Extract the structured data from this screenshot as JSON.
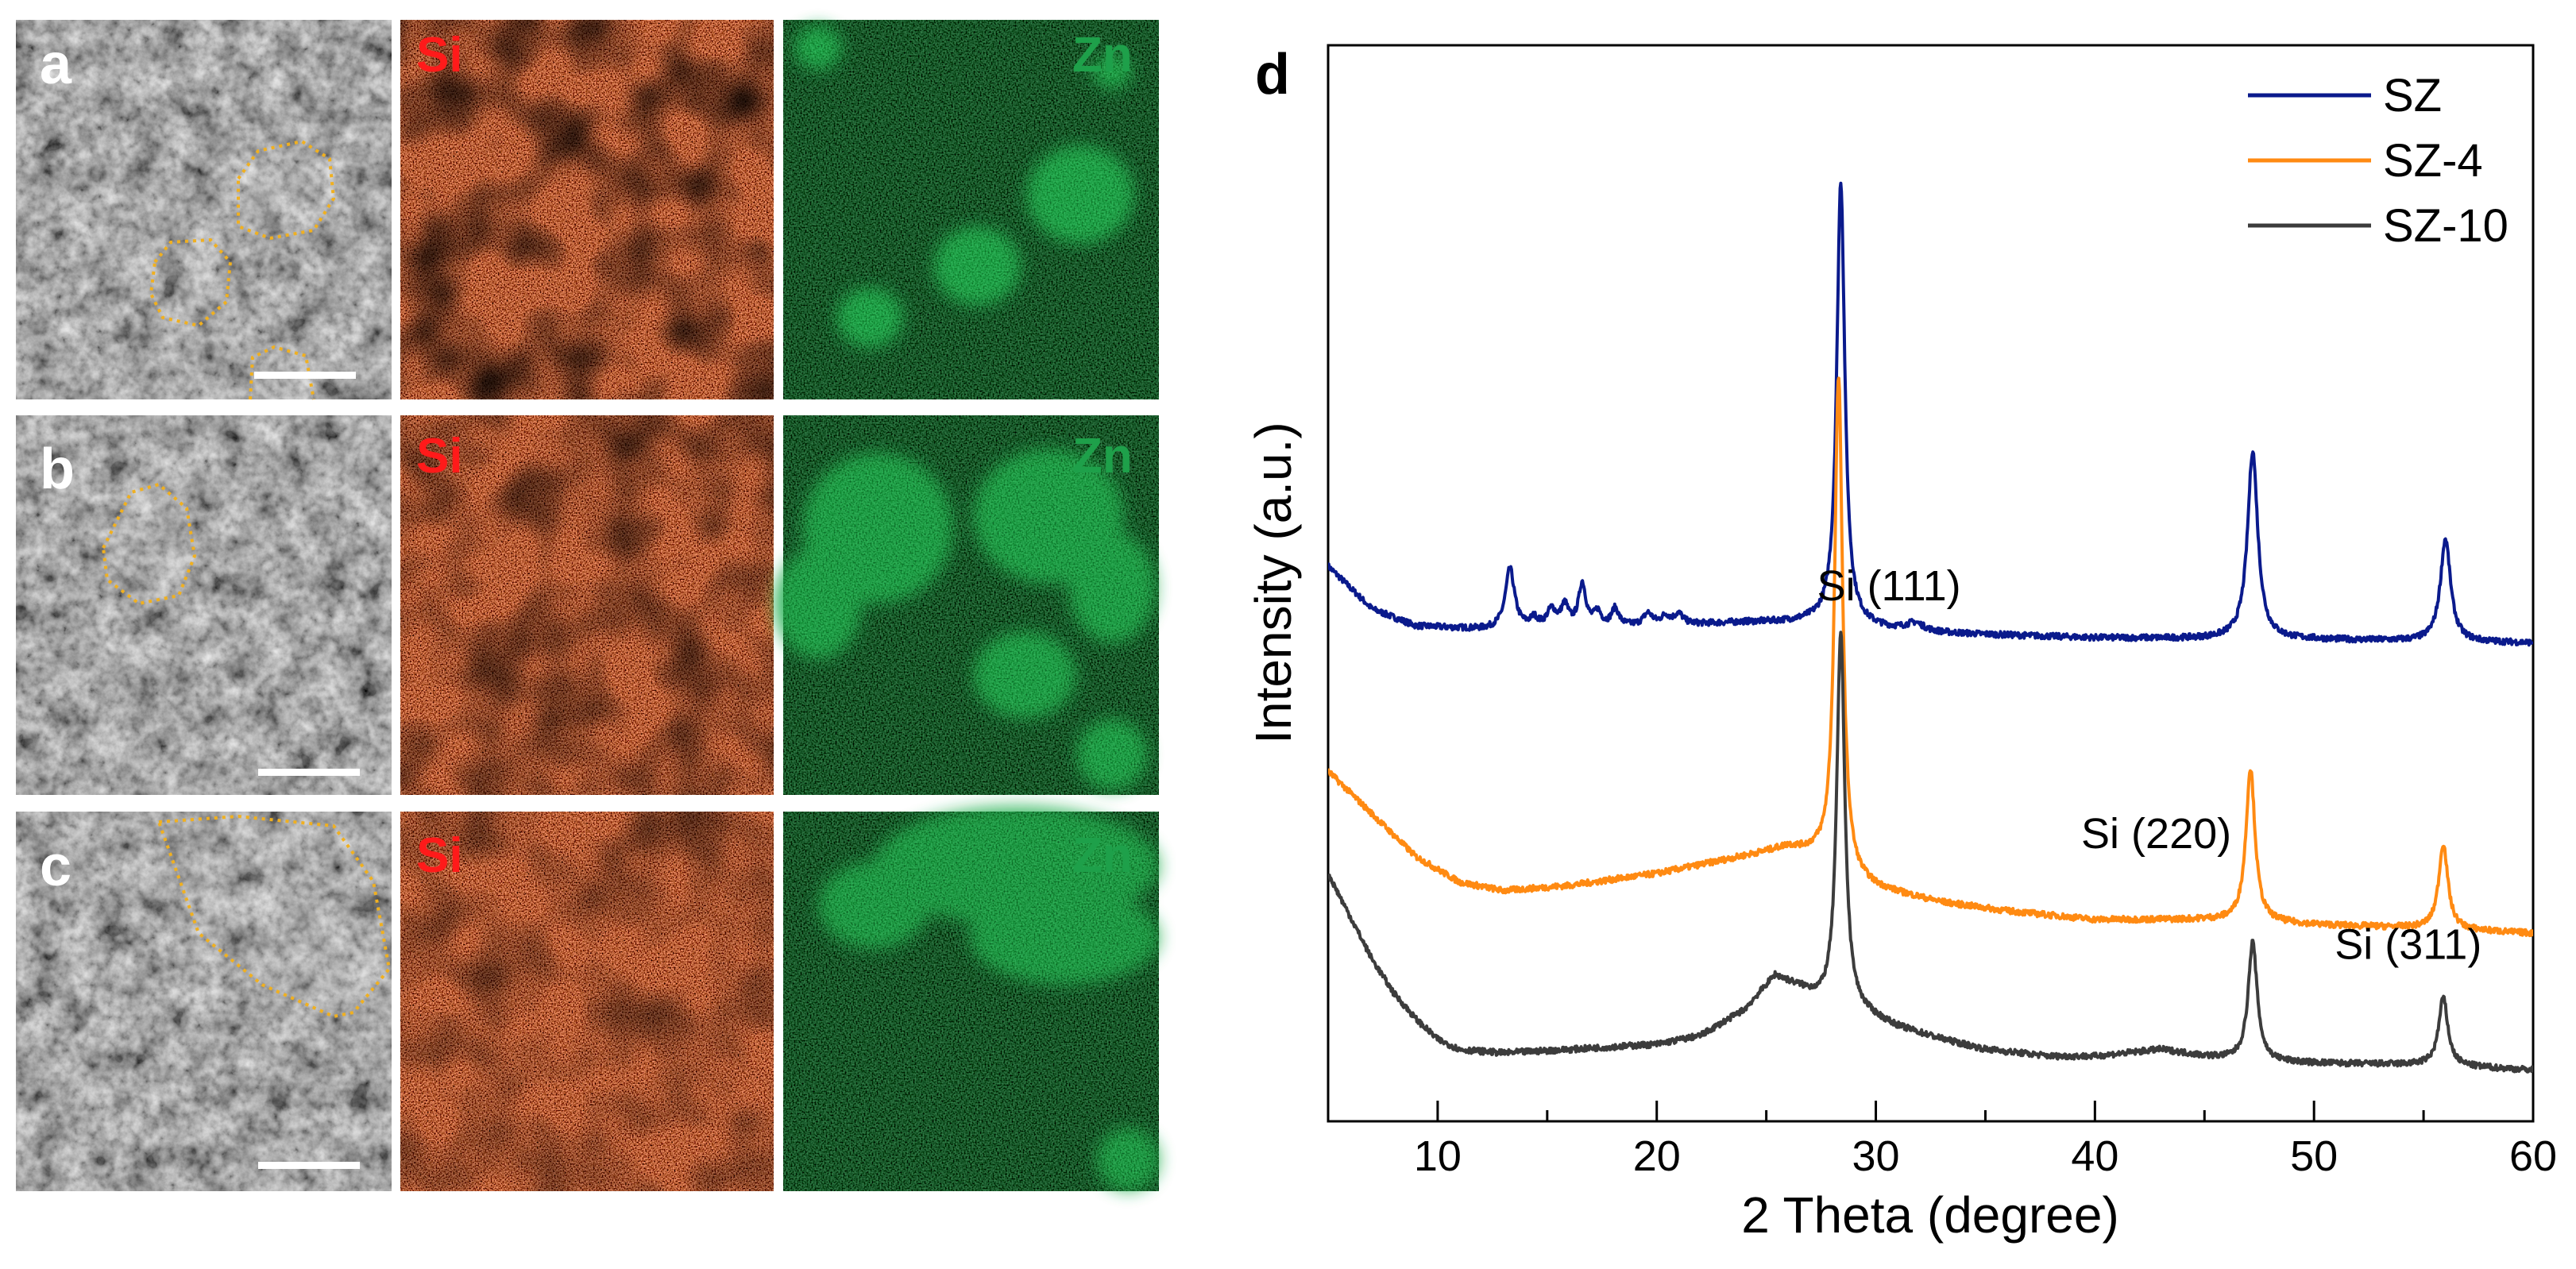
{
  "panels": {
    "a": {
      "letter": "a",
      "si_label": "Si",
      "zn_label": "Zn"
    },
    "b": {
      "letter": "b",
      "si_label": "Si",
      "zn_label": "Zn"
    },
    "c": {
      "letter": "c",
      "si_label": "Si",
      "zn_label": "Zn"
    },
    "d": {
      "letter": "d"
    }
  },
  "colors": {
    "si_map": "#e6321e",
    "zn_map": "#1fae4b",
    "si_label": "#ff1a1a",
    "zn_label": "#1ea04a",
    "outline": "#f0b020",
    "SZ": "#0a1a8c",
    "SZ-4": "#ff8a12",
    "SZ-10": "#3c3c3c"
  },
  "chart_data": {
    "type": "line",
    "title": "",
    "xlabel": "2 Theta (degree)",
    "ylabel": "Intensity (a.u.)",
    "xlim": [
      5,
      60
    ],
    "x_ticks": [
      10,
      20,
      30,
      40,
      50,
      60
    ],
    "x_tick_labels": [
      "10",
      "20",
      "30",
      "40",
      "50",
      "60"
    ],
    "legend": {
      "position": "top-right",
      "entries": [
        {
          "name": "SZ",
          "color": "#0a1a8c"
        },
        {
          "name": "SZ-4",
          "color": "#ff8a12"
        },
        {
          "name": "SZ-10",
          "color": "#3c3c3c"
        }
      ]
    },
    "series": [
      {
        "name": "SZ",
        "offset": 2.5,
        "baseline": [
          [
            5,
            0.45
          ],
          [
            7,
            0.2
          ],
          [
            9,
            0.1
          ],
          [
            12,
            0.08
          ],
          [
            20,
            0.1
          ],
          [
            24,
            0.12
          ],
          [
            27,
            0.12
          ],
          [
            32,
            0.06
          ],
          [
            40,
            0.03
          ],
          [
            50,
            0.02
          ],
          [
            60,
            0.0
          ]
        ],
        "peaks": [
          {
            "center": 13.3,
            "height": 0.35,
            "width": 0.25
          },
          {
            "center": 14.4,
            "height": 0.05,
            "width": 0.2
          },
          {
            "center": 15.2,
            "height": 0.1,
            "width": 0.25
          },
          {
            "center": 15.8,
            "height": 0.12,
            "width": 0.2
          },
          {
            "center": 16.6,
            "height": 0.25,
            "width": 0.2
          },
          {
            "center": 17.3,
            "height": 0.08,
            "width": 0.2
          },
          {
            "center": 18.1,
            "height": 0.1,
            "width": 0.2
          },
          {
            "center": 19.6,
            "height": 0.07,
            "width": 0.25
          },
          {
            "center": 20.4,
            "height": 0.05,
            "width": 0.25
          },
          {
            "center": 21.0,
            "height": 0.06,
            "width": 0.25
          },
          {
            "center": 28.4,
            "height": 2.6,
            "width": 0.22
          },
          {
            "center": 31.8,
            "height": 0.05,
            "width": 0.5
          },
          {
            "center": 47.2,
            "height": 1.1,
            "width": 0.28
          },
          {
            "center": 56.0,
            "height": 0.6,
            "width": 0.28
          }
        ]
      },
      {
        "name": "SZ-4",
        "offset": 0.8,
        "baseline": [
          [
            5,
            0.95
          ],
          [
            7,
            0.7
          ],
          [
            9,
            0.45
          ],
          [
            11,
            0.3
          ],
          [
            13,
            0.25
          ],
          [
            16,
            0.28
          ],
          [
            20,
            0.35
          ],
          [
            24,
            0.45
          ],
          [
            26,
            0.5
          ],
          [
            27.3,
            0.45
          ],
          [
            29,
            0.3
          ],
          [
            30,
            0.26
          ],
          [
            33,
            0.18
          ],
          [
            36,
            0.13
          ],
          [
            40,
            0.08
          ],
          [
            45,
            0.08
          ],
          [
            50,
            0.05
          ],
          [
            55,
            0.03
          ],
          [
            60,
            0.0
          ]
        ],
        "peaks": [
          {
            "center": 28.3,
            "height": 2.9,
            "width": 0.22
          },
          {
            "center": 47.1,
            "height": 0.9,
            "width": 0.25
          },
          {
            "center": 55.9,
            "height": 0.5,
            "width": 0.25
          }
        ]
      },
      {
        "name": "SZ-10",
        "offset": 0.0,
        "baseline": [
          [
            5,
            1.15
          ],
          [
            6,
            0.9
          ],
          [
            7,
            0.65
          ],
          [
            8,
            0.45
          ],
          [
            9,
            0.3
          ],
          [
            10,
            0.18
          ],
          [
            11,
            0.12
          ],
          [
            13,
            0.1
          ],
          [
            16,
            0.12
          ],
          [
            20,
            0.15
          ],
          [
            22,
            0.2
          ],
          [
            24,
            0.35
          ],
          [
            25.4,
            0.55
          ],
          [
            26.5,
            0.48
          ],
          [
            27.5,
            0.4
          ],
          [
            29,
            0.35
          ],
          [
            30,
            0.3
          ],
          [
            31,
            0.25
          ],
          [
            33,
            0.18
          ],
          [
            35,
            0.12
          ],
          [
            38,
            0.08
          ],
          [
            40,
            0.08
          ],
          [
            43,
            0.12
          ],
          [
            45,
            0.08
          ],
          [
            47,
            0.05
          ],
          [
            50,
            0.04
          ],
          [
            55,
            0.03
          ],
          [
            60,
            0.0
          ]
        ],
        "peaks": [
          {
            "center": 28.4,
            "height": 2.2,
            "width": 0.22
          },
          {
            "center": 47.2,
            "height": 0.7,
            "width": 0.25
          },
          {
            "center": 55.9,
            "height": 0.4,
            "width": 0.25
          }
        ]
      }
    ],
    "annotations": [
      {
        "text": "Si (111)",
        "x": 30.6,
        "y": 2.75
      },
      {
        "text": "Si (220)",
        "x": 42.8,
        "y": 1.3
      },
      {
        "text": "Si (311)",
        "x": 54.3,
        "y": 0.65
      }
    ],
    "ylim": [
      -0.3,
      6.0
    ]
  }
}
